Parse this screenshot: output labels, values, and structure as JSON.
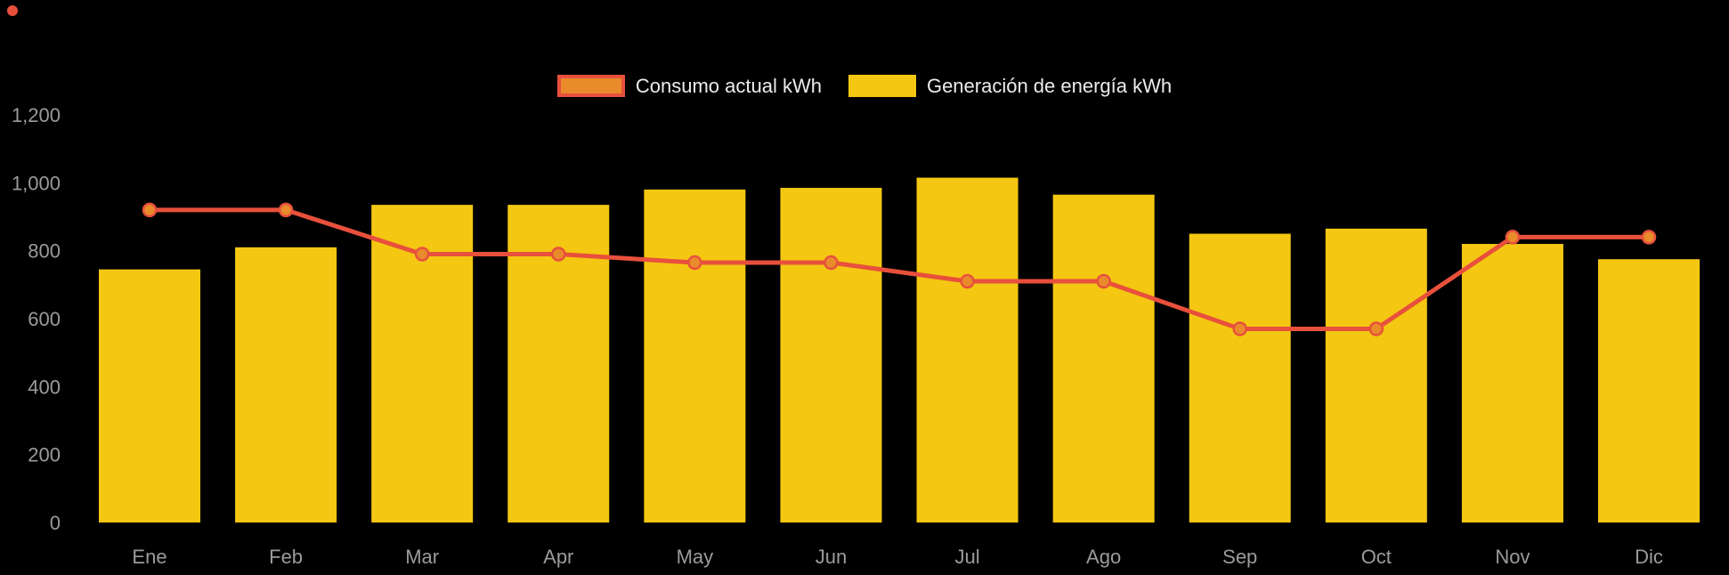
{
  "chart_data": {
    "type": "bar",
    "title": "",
    "xlabel": "",
    "ylabel": "",
    "categories": [
      "Ene",
      "Feb",
      "Mar",
      "Apr",
      "May",
      "Jun",
      "Jul",
      "Ago",
      "Sep",
      "Oct",
      "Nov",
      "Dic"
    ],
    "series": [
      {
        "name": "Consumo actual kWh",
        "type": "line",
        "color": "#E8503C",
        "point_fill": "#E98A2B",
        "values": [
          920,
          920,
          790,
          790,
          765,
          765,
          710,
          710,
          570,
          570,
          840,
          840
        ]
      },
      {
        "name": "Generación de energía kWh",
        "type": "bar",
        "color": "#F4C712",
        "values": [
          745,
          810,
          935,
          935,
          980,
          985,
          1015,
          965,
          850,
          865,
          820,
          775
        ]
      }
    ],
    "ylim": [
      0,
      1200
    ],
    "yticks": [
      {
        "value": 0,
        "label": "0"
      },
      {
        "value": 200,
        "label": "200"
      },
      {
        "value": 400,
        "label": "400"
      },
      {
        "value": 600,
        "label": "600"
      },
      {
        "value": 800,
        "label": "800"
      },
      {
        "value": 1000,
        "label": "1,000"
      },
      {
        "value": 1200,
        "label": "1,200"
      }
    ],
    "grid": false,
    "legend_position": "top",
    "background": "#000000",
    "axis_text_color": "#9B9B9B",
    "legend_text_color": "#ECECEC",
    "corner_dot_color": "#E8503C"
  }
}
